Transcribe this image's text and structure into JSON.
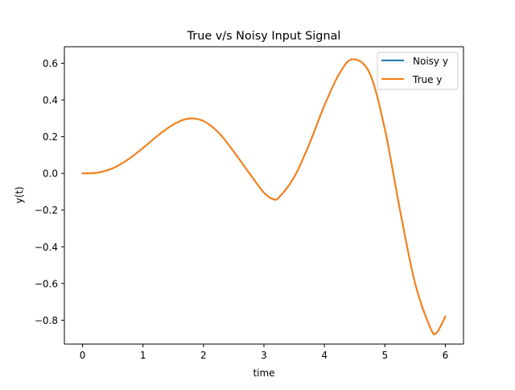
{
  "chart_data": {
    "type": "line",
    "title": "True v/s Noisy Input Signal",
    "xlabel": "time",
    "ylabel": "y(t)",
    "xlim": [
      -0.3,
      6.3
    ],
    "ylim": [
      -0.93,
      0.69
    ],
    "xticks": [
      0,
      1,
      2,
      3,
      4,
      5,
      6
    ],
    "xtick_labels": [
      "0",
      "1",
      "2",
      "3",
      "4",
      "5",
      "6"
    ],
    "yticks": [
      -0.8,
      -0.6,
      -0.4,
      -0.2,
      0.0,
      0.2,
      0.4,
      0.6
    ],
    "ytick_labels": [
      "−0.8",
      "−0.6",
      "−0.4",
      "−0.2",
      "0.0",
      "0.2",
      "0.4",
      "0.6"
    ],
    "grid": false,
    "legend_position": "top-right",
    "x": [
      0,
      0.25,
      0.5,
      0.75,
      1.0,
      1.25,
      1.5,
      1.75,
      2.0,
      2.25,
      2.5,
      2.75,
      3.0,
      3.15,
      3.25,
      3.5,
      3.75,
      4.0,
      4.25,
      4.47,
      4.75,
      5.0,
      5.25,
      5.5,
      5.75,
      5.85,
      6.0
    ],
    "series": [
      {
        "name": "Noisy y",
        "color": "#1f77b4",
        "values": [
          0.0,
          0.004,
          0.028,
          0.075,
          0.138,
          0.207,
          0.266,
          0.298,
          0.285,
          0.222,
          0.119,
          0.005,
          -0.105,
          -0.14,
          -0.13,
          -0.02,
          0.16,
          0.37,
          0.545,
          0.622,
          0.545,
          0.24,
          -0.2,
          -0.6,
          -0.84,
          -0.87,
          -0.78
        ]
      },
      {
        "name": "True y",
        "color": "#ff7f0e",
        "values": [
          0.0,
          0.004,
          0.028,
          0.075,
          0.138,
          0.207,
          0.266,
          0.298,
          0.285,
          0.222,
          0.119,
          0.005,
          -0.105,
          -0.14,
          -0.13,
          -0.02,
          0.16,
          0.37,
          0.545,
          0.622,
          0.545,
          0.24,
          -0.2,
          -0.6,
          -0.84,
          -0.87,
          -0.78
        ]
      }
    ]
  }
}
